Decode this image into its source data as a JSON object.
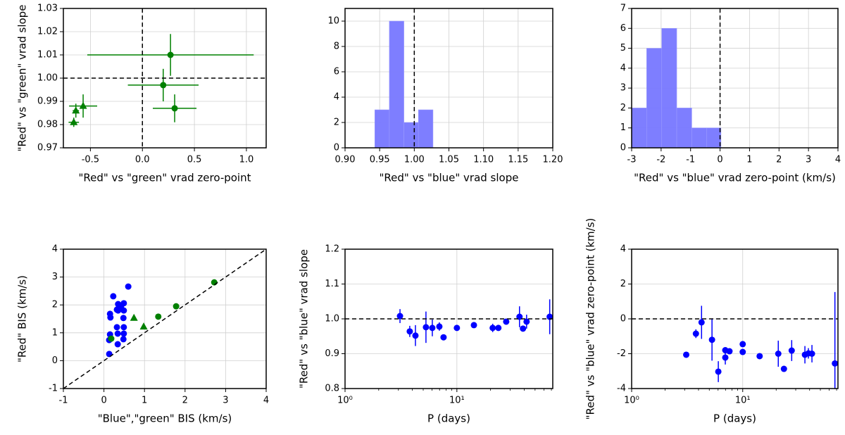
{
  "chart_data": [
    {
      "type": "scatter",
      "xlabel": "\"Red\" vs \"green\" vrad zero-point",
      "ylabel": "\"Red\" vs \"green\" vrad slope",
      "xlim": [
        -0.76,
        1.19
      ],
      "ylim": [
        0.97,
        1.03
      ],
      "xticks": [
        -0.5,
        {
          "value": 0,
          "label": "0.0"
        },
        0.5,
        {
          "value": 1,
          "label": "1.0"
        }
      ],
      "yticks": [
        0.97,
        0.98,
        0.99,
        {
          "value": 1,
          "label": "1.00"
        },
        1.01,
        1.02,
        1.03
      ],
      "grid": true,
      "vline": 0,
      "hline": 1.0,
      "series": [
        {
          "marker": "circle",
          "color": "#008000",
          "x": [
            0.27,
            0.2,
            0.31
          ],
          "values": [
            1.01,
            0.997,
            0.987
          ],
          "xerr": [
            0.8,
            0.34,
            0.21
          ],
          "yerr": [
            0.009,
            0.007,
            0.006
          ]
        },
        {
          "marker": "triangle",
          "color": "#008000",
          "x": [
            -0.57,
            -0.64,
            -0.66
          ],
          "values": [
            0.988,
            0.986,
            0.981
          ],
          "xerr": [
            0.135,
            0.03,
            0.05
          ],
          "yerr": [
            0.005,
            0.003,
            0.002
          ]
        }
      ]
    },
    {
      "type": "histogram",
      "xlabel": "\"Red\" vs \"blue\" vrad slope",
      "xlim": [
        0.9,
        1.2
      ],
      "ylim": [
        0,
        11
      ],
      "xticks": [
        {
          "value": 0.9,
          "label": "0.90"
        },
        0.95,
        {
          "value": 1,
          "label": "1.00"
        },
        1.05,
        {
          "value": 1.1,
          "label": "1.10"
        },
        1.15,
        {
          "value": 1.2,
          "label": "1.20"
        }
      ],
      "yticks": [
        0,
        2,
        4,
        6,
        8,
        10
      ],
      "grid": true,
      "vline": 1.0,
      "color": "#7777ff",
      "bins": [
        0.943,
        0.964,
        0.985,
        1.006,
        1.027
      ],
      "values": [
        3,
        10,
        2,
        3
      ]
    },
    {
      "type": "histogram",
      "xlabel": "\"Red\" vs \"blue\" vrad zero-point (km/s)",
      "xlim": [
        -3,
        4
      ],
      "ylim": [
        0,
        7
      ],
      "xticks": [
        -3,
        -2,
        -1,
        0,
        1,
        2,
        3,
        4
      ],
      "yticks": [
        0,
        1,
        2,
        3,
        4,
        5,
        6,
        7
      ],
      "grid": true,
      "vline": 0,
      "color": "#7777ff",
      "bins": [
        -3.0,
        -2.49,
        -1.98,
        -1.47,
        -0.96,
        -0.45,
        0.03
      ],
      "values": [
        2,
        5,
        6,
        2,
        1,
        1
      ]
    },
    {
      "type": "scatter",
      "xlabel": "\"Blue\",\"green\" BIS (km/s)",
      "ylabel": "\"Red\" BIS (km/s)",
      "xlim": [
        -1,
        4
      ],
      "ylim": [
        -1,
        4
      ],
      "xticks": [
        -1,
        0,
        1,
        2,
        3,
        4
      ],
      "yticks": [
        -1,
        0,
        1,
        2,
        3,
        4
      ],
      "grid": true,
      "identity_line": true,
      "series": [
        {
          "marker": "circle",
          "color": "#0000ff",
          "x": [
            0.23,
            0.6,
            0.15,
            0.16,
            0.32,
            0.35,
            0.49,
            0.42,
            0.49,
            0.35,
            0.48,
            0.32,
            0.34,
            0.15,
            0.13,
            0.13,
            0.34,
            0.49,
            0.49,
            0.48
          ],
          "values": [
            2.31,
            2.66,
            1.68,
            1.55,
            1.83,
            2.03,
            2.06,
            1.93,
            1.8,
            1.8,
            1.53,
            1.2,
            0.97,
            0.94,
            0.74,
            0.24,
            0.59,
            1.2,
            0.97,
            0.77
          ]
        },
        {
          "marker": "circle",
          "color": "#008000",
          "x": [
            2.72,
            1.78,
            1.34,
            0.18
          ],
          "values": [
            2.81,
            1.95,
            1.58,
            0.79
          ]
        },
        {
          "marker": "triangle",
          "color": "#008000",
          "x": [
            0.74,
            0.98
          ],
          "values": [
            1.53,
            1.22
          ]
        }
      ]
    },
    {
      "type": "scatter",
      "xlabel": "P (days)",
      "ylabel": "\"Red\" vs \"blue\" vrad slope",
      "xscale": "log",
      "xlim": [
        1,
        72
      ],
      "ylim": [
        0.8,
        1.2
      ],
      "xticks": [
        {
          "value": 1,
          "label": "10⁰"
        },
        {
          "value": 10,
          "label": "10¹"
        }
      ],
      "yticks": [
        0.8,
        0.9,
        {
          "value": 1,
          "label": "1.0"
        },
        1.1,
        1.2
      ],
      "grid": true,
      "hline": 1.0,
      "series": [
        {
          "marker": "circle",
          "color": "#0000ff",
          "x": [
            3.1,
            3.79,
            4.26,
            5.29,
            6.03,
            6.97,
            7.6,
            10,
            14.2,
            20.9,
            23.5,
            27.6,
            36.3,
            39,
            42,
            67.6
          ],
          "values": [
            1.008,
            0.964,
            0.952,
            0.976,
            0.974,
            0.978,
            0.947,
            0.974,
            0.982,
            0.974,
            0.974,
            0.992,
            1.006,
            0.972,
            0.992,
            1.006
          ],
          "yerr": [
            0.02,
            0.016,
            0.03,
            0.045,
            0.024,
            0.012,
            0.006,
            0.006,
            0.008,
            0.012,
            0.006,
            0.008,
            0.03,
            0.008,
            0.02,
            0.05
          ]
        }
      ]
    },
    {
      "type": "scatter",
      "xlabel": "P (days)",
      "ylabel": "\"Red\" vs \"blue\" vrad zero-point (km/s)",
      "xscale": "log",
      "xlim": [
        1,
        72
      ],
      "ylim": [
        -4,
        4
      ],
      "xticks": [
        {
          "value": 1,
          "label": "10⁰"
        },
        {
          "value": 10,
          "label": "10¹"
        }
      ],
      "yticks": [
        -4,
        -2,
        0,
        2,
        4
      ],
      "grid": true,
      "hline": 0,
      "series": [
        {
          "marker": "circle",
          "color": "#0000ff",
          "x": [
            3.1,
            3.79,
            4.26,
            5.29,
            6.03,
            6.97,
            6.97,
            7.6,
            10,
            10,
            14.2,
            20.9,
            23.5,
            27.6,
            36.3,
            39,
            42,
            67.6
          ],
          "values": [
            -2.06,
            -0.85,
            -0.2,
            -1.2,
            -3.03,
            -2.22,
            -1.8,
            -1.86,
            -1.45,
            -1.9,
            -2.14,
            -2.0,
            -2.87,
            -1.82,
            -2.06,
            -1.98,
            -2.0,
            -2.56
          ],
          "yerr": [
            0.1,
            0.25,
            0.95,
            1.2,
            0.6,
            0.4,
            0.1,
            0.1,
            0.1,
            0.1,
            0.1,
            0.75,
            0.1,
            0.6,
            0.5,
            0.3,
            0.5,
            4.1
          ]
        }
      ]
    }
  ]
}
